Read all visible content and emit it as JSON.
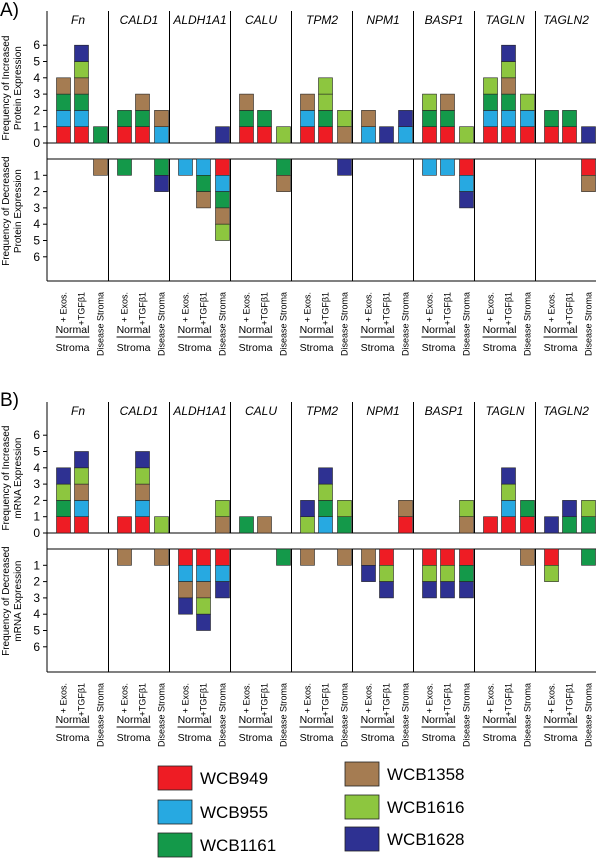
{
  "legend": [
    {
      "name": "WCB949",
      "color": "#ee1c24"
    },
    {
      "name": "WCB955",
      "color": "#27a9e1"
    },
    {
      "name": "WCB1161",
      "color": "#14994a"
    },
    {
      "name": "WCB1358",
      "color": "#a57c52"
    },
    {
      "name": "WCB1616",
      "color": "#8dc63f"
    },
    {
      "name": "WCB1628",
      "color": "#2e3192"
    }
  ],
  "conditions": [
    "+ Exos.",
    "+TGFβ1",
    "Disease Stroma"
  ],
  "group_label": [
    "Normal",
    "Stroma"
  ],
  "chart_data": [
    {
      "type": "bar",
      "panel": "A)",
      "ylabel_up": [
        "Frequency of Increased",
        "Protein Expression"
      ],
      "ylabel_down": [
        "Frequency of Decreased",
        "Protein Expression"
      ],
      "yticks_up": [
        0,
        1,
        2,
        3,
        4,
        5,
        6
      ],
      "yticks_down": [
        1,
        2,
        3,
        4,
        5,
        6
      ],
      "ylim": [
        -6,
        6
      ],
      "genes": [
        {
          "name": "Fn",
          "bars": [
            {
              "up": [
                "WCB949",
                "WCB955",
                "WCB1161",
                "WCB1358"
              ],
              "down": []
            },
            {
              "up": [
                "WCB949",
                "WCB955",
                "WCB1161",
                "WCB1358",
                "WCB1616",
                "WCB1628"
              ],
              "down": []
            },
            {
              "up": [
                "WCB1161"
              ],
              "down": [
                "WCB1358"
              ]
            }
          ]
        },
        {
          "name": "CALD1",
          "bars": [
            {
              "up": [
                "WCB949",
                "WCB1161"
              ],
              "down": [
                "WCB1161"
              ]
            },
            {
              "up": [
                "WCB949",
                "WCB1161",
                "WCB1358"
              ],
              "down": []
            },
            {
              "up": [
                "WCB955",
                "WCB1358"
              ],
              "down": [
                "WCB1161",
                "WCB1628"
              ]
            }
          ]
        },
        {
          "name": "ALDH1A1",
          "bars": [
            {
              "up": [],
              "down": [
                "WCB955"
              ]
            },
            {
              "up": [],
              "down": [
                "WCB955",
                "WCB1161",
                "WCB1358"
              ]
            },
            {
              "up": [
                "WCB1628"
              ],
              "down": [
                "WCB949",
                "WCB955",
                "WCB1161",
                "WCB1358",
                "WCB1616"
              ]
            }
          ]
        },
        {
          "name": "CALU",
          "bars": [
            {
              "up": [
                "WCB949",
                "WCB1161",
                "WCB1358"
              ],
              "down": []
            },
            {
              "up": [
                "WCB949",
                "WCB1161"
              ],
              "down": []
            },
            {
              "up": [
                "WCB1616"
              ],
              "down": [
                "WCB1161",
                "WCB1358"
              ]
            }
          ]
        },
        {
          "name": "TPM2",
          "bars": [
            {
              "up": [
                "WCB949",
                "WCB955",
                "WCB1358"
              ],
              "down": []
            },
            {
              "up": [
                "WCB949",
                "WCB1161",
                "WCB1616",
                "WCB1616"
              ],
              "down": []
            },
            {
              "up": [
                "WCB1358",
                "WCB1616"
              ],
              "down": [
                "WCB1628"
              ]
            }
          ]
        },
        {
          "name": "NPM1",
          "bars": [
            {
              "up": [
                "WCB955",
                "WCB1358"
              ],
              "down": []
            },
            {
              "up": [
                "WCB1628"
              ],
              "down": []
            },
            {
              "up": [
                "WCB955",
                "WCB1628"
              ],
              "down": []
            }
          ]
        },
        {
          "name": "BASP1",
          "bars": [
            {
              "up": [
                "WCB949",
                "WCB1161",
                "WCB1616"
              ],
              "down": [
                "WCB955"
              ]
            },
            {
              "up": [
                "WCB949",
                "WCB1161",
                "WCB1358"
              ],
              "down": [
                "WCB955"
              ]
            },
            {
              "up": [
                "WCB1616"
              ],
              "down": [
                "WCB949",
                "WCB955",
                "WCB1628"
              ]
            }
          ]
        },
        {
          "name": "TAGLN",
          "bars": [
            {
              "up": [
                "WCB949",
                "WCB955",
                "WCB1161",
                "WCB1616"
              ],
              "down": []
            },
            {
              "up": [
                "WCB949",
                "WCB955",
                "WCB1161",
                "WCB1358",
                "WCB1616",
                "WCB1628"
              ],
              "down": []
            },
            {
              "up": [
                "WCB949",
                "WCB955",
                "WCB1616"
              ],
              "down": []
            }
          ]
        },
        {
          "name": "TAGLN2",
          "bars": [
            {
              "up": [
                "WCB949",
                "WCB1161"
              ],
              "down": []
            },
            {
              "up": [
                "WCB949",
                "WCB1161"
              ],
              "down": []
            },
            {
              "up": [
                "WCB1628"
              ],
              "down": [
                "WCB949",
                "WCB1358"
              ]
            }
          ]
        }
      ]
    },
    {
      "type": "bar",
      "panel": "B)",
      "ylabel_up": [
        "Frequency of Increased",
        "mRNA Expression"
      ],
      "ylabel_down": [
        "Frequency of Decreased",
        "mRNA Expression"
      ],
      "yticks_up": [
        0,
        1,
        2,
        3,
        4,
        5,
        6
      ],
      "yticks_down": [
        1,
        2,
        3,
        4,
        5,
        6
      ],
      "ylim": [
        -6,
        6
      ],
      "genes": [
        {
          "name": "Fn",
          "bars": [
            {
              "up": [
                "WCB949",
                "WCB1161",
                "WCB1616",
                "WCB1628"
              ],
              "down": []
            },
            {
              "up": [
                "WCB949",
                "WCB955",
                "WCB1358",
                "WCB1616",
                "WCB1628"
              ],
              "down": []
            },
            {
              "up": [],
              "down": []
            }
          ]
        },
        {
          "name": "CALD1",
          "bars": [
            {
              "up": [
                "WCB949"
              ],
              "down": [
                "WCB1358"
              ]
            },
            {
              "up": [
                "WCB949",
                "WCB955",
                "WCB1358",
                "WCB1616",
                "WCB1628"
              ],
              "down": []
            },
            {
              "up": [
                "WCB1616"
              ],
              "down": [
                "WCB1358"
              ]
            }
          ]
        },
        {
          "name": "ALDH1A1",
          "bars": [
            {
              "up": [],
              "down": [
                "WCB949",
                "WCB955",
                "WCB1358",
                "WCB1628"
              ]
            },
            {
              "up": [],
              "down": [
                "WCB949",
                "WCB955",
                "WCB1358",
                "WCB1616",
                "WCB1628"
              ]
            },
            {
              "up": [
                "WCB1358",
                "WCB1616"
              ],
              "down": [
                "WCB949",
                "WCB955",
                "WCB1628"
              ]
            }
          ]
        },
        {
          "name": "CALU",
          "bars": [
            {
              "up": [
                "WCB1161"
              ],
              "down": []
            },
            {
              "up": [
                "WCB1358"
              ],
              "down": []
            },
            {
              "up": [],
              "down": [
                "WCB1161"
              ]
            }
          ]
        },
        {
          "name": "TPM2",
          "bars": [
            {
              "up": [
                "WCB1616",
                "WCB1628"
              ],
              "down": [
                "WCB1358"
              ]
            },
            {
              "up": [
                "WCB955",
                "WCB1161",
                "WCB1616",
                "WCB1628"
              ],
              "down": []
            },
            {
              "up": [
                "WCB1161",
                "WCB1616"
              ],
              "down": [
                "WCB1358"
              ]
            }
          ]
        },
        {
          "name": "NPM1",
          "bars": [
            {
              "up": [],
              "down": [
                "WCB1358",
                "WCB1628"
              ]
            },
            {
              "up": [],
              "down": [
                "WCB949",
                "WCB1616",
                "WCB1628"
              ]
            },
            {
              "up": [
                "WCB949",
                "WCB1358"
              ],
              "down": []
            }
          ]
        },
        {
          "name": "BASP1",
          "bars": [
            {
              "up": [],
              "down": [
                "WCB949",
                "WCB1616",
                "WCB1628"
              ]
            },
            {
              "up": [],
              "down": [
                "WCB949",
                "WCB1616",
                "WCB1628"
              ]
            },
            {
              "up": [
                "WCB1358",
                "WCB1616"
              ],
              "down": [
                "WCB949",
                "WCB1161",
                "WCB1628"
              ]
            }
          ]
        },
        {
          "name": "TAGLN",
          "bars": [
            {
              "up": [
                "WCB949"
              ],
              "down": []
            },
            {
              "up": [
                "WCB949",
                "WCB955",
                "WCB1616",
                "WCB1628"
              ],
              "down": []
            },
            {
              "up": [
                "WCB949",
                "WCB1161"
              ],
              "down": [
                "WCB1358"
              ]
            }
          ]
        },
        {
          "name": "TAGLN2",
          "bars": [
            {
              "up": [
                "WCB1628"
              ],
              "down": [
                "WCB949",
                "WCB1616"
              ]
            },
            {
              "up": [
                "WCB1161",
                "WCB1628"
              ],
              "down": []
            },
            {
              "up": [
                "WCB1161",
                "WCB1616"
              ],
              "down": [
                "WCB1161"
              ]
            }
          ]
        }
      ]
    }
  ]
}
